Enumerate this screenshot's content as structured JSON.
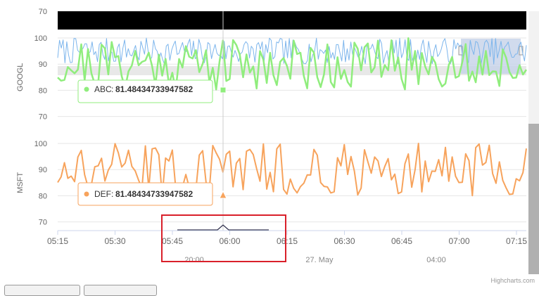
{
  "chart_data": {
    "type": "line",
    "x_ticks": [
      "05:15",
      "05:30",
      "05:45",
      "06:00",
      "06:15",
      "06:30",
      "06:45",
      "07:00",
      "07:15"
    ],
    "navigator_labels": [
      "20:00",
      "27. May",
      "04:00"
    ],
    "credits": "Highcharts.com",
    "panes": [
      {
        "ylabel": "GOOGL",
        "yticks": [
          70,
          80,
          90,
          100
        ],
        "top_tick_partial": "70",
        "ylim": [
          68,
          102
        ],
        "series": [
          {
            "name": "ABC",
            "color": "#90ed7d",
            "ylim": [
              80,
              100
            ]
          },
          {
            "color": "#7cb5ec",
            "ylim": [
              90,
              100
            ]
          }
        ],
        "tooltip": {
          "series": "ABC",
          "value": "81.48434733947582"
        }
      },
      {
        "ylabel": "MSFT",
        "yticks": [
          70,
          80,
          90,
          100
        ],
        "ylim": [
          68,
          102
        ],
        "series": [
          {
            "name": "DEF",
            "color": "#f7a35c",
            "ylim": [
              80,
              100
            ]
          }
        ],
        "tooltip": {
          "series": "DEF",
          "value": "81.48434733947582"
        }
      }
    ],
    "crosshair_time": "05:58",
    "overlay_box_color": "#d9202a"
  }
}
